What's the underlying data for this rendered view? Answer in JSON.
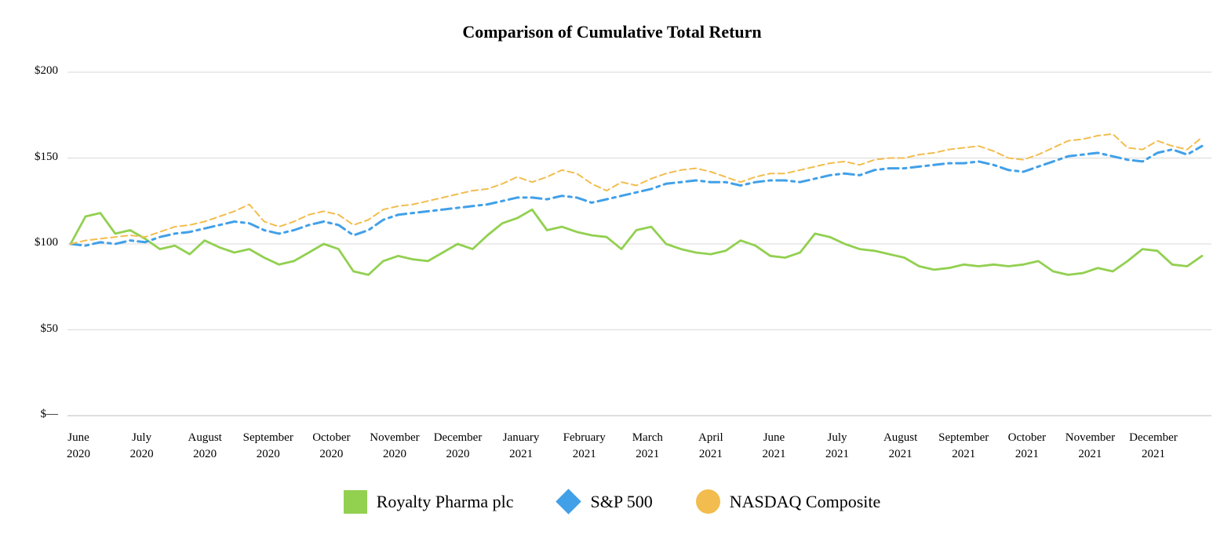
{
  "chart_data": {
    "type": "line",
    "title": "Comparison of Cumulative Total Return",
    "xlabel": "",
    "ylabel": "",
    "ylim": [
      0,
      200
    ],
    "grid": "horizontal",
    "legend_position": "bottom-center",
    "yticks": [
      {
        "value": 0,
        "label": "$—"
      },
      {
        "value": 50,
        "label": "$50"
      },
      {
        "value": 100,
        "label": "$100"
      },
      {
        "value": 150,
        "label": "$150"
      },
      {
        "value": 200,
        "label": "$200"
      }
    ],
    "x_labels": [
      {
        "month": "June",
        "year": "2020"
      },
      {
        "month": "July",
        "year": "2020"
      },
      {
        "month": "August",
        "year": "2020"
      },
      {
        "month": "September",
        "year": "2020"
      },
      {
        "month": "October",
        "year": "2020"
      },
      {
        "month": "November",
        "year": "2020"
      },
      {
        "month": "December",
        "year": "2020"
      },
      {
        "month": "January",
        "year": "2021"
      },
      {
        "month": "February",
        "year": "2021"
      },
      {
        "month": "March",
        "year": "2021"
      },
      {
        "month": "April",
        "year": "2021"
      },
      {
        "month": "June",
        "year": "2021"
      },
      {
        "month": "July",
        "year": "2021"
      },
      {
        "month": "August",
        "year": "2021"
      },
      {
        "month": "September",
        "year": "2021"
      },
      {
        "month": "October",
        "year": "2021"
      },
      {
        "month": "November",
        "year": "2021"
      },
      {
        "month": "December",
        "year": "2021"
      }
    ],
    "series": [
      {
        "id": "royalty-pharma-plc",
        "name": "Royalty Pharma plc",
        "color": "#92d050",
        "marker": "square",
        "line_style": "solid",
        "width": 2.8,
        "dash": "",
        "values": [
          100,
          116,
          118,
          106,
          108,
          103,
          97,
          99,
          94,
          102,
          98,
          95,
          97,
          92,
          88,
          90,
          95,
          100,
          97,
          84,
          82,
          90,
          93,
          91,
          90,
          95,
          100,
          97,
          105,
          112,
          115,
          120,
          108,
          110,
          107,
          105,
          104,
          97,
          108,
          110,
          100,
          97,
          95,
          94,
          96,
          102,
          99,
          93,
          92,
          95,
          106,
          104,
          100,
          97,
          96,
          94,
          92,
          87,
          85,
          86,
          88,
          87,
          88,
          87,
          88,
          90,
          84,
          82,
          83,
          86,
          84,
          90,
          97,
          96,
          88,
          87,
          93
        ]
      },
      {
        "id": "sp-500",
        "name": "S&P 500",
        "color": "#41a0e8",
        "marker": "diamond",
        "line_style": "dashdot",
        "width": 3,
        "dash": "13 6 4 6",
        "values": [
          100,
          99,
          101,
          100,
          102,
          101,
          104,
          106,
          107,
          109,
          111,
          113,
          112,
          108,
          106,
          108,
          111,
          113,
          111,
          105,
          108,
          114,
          117,
          118,
          119,
          120,
          121,
          122,
          123,
          125,
          127,
          127,
          126,
          128,
          127,
          124,
          126,
          128,
          130,
          132,
          135,
          136,
          137,
          136,
          136,
          134,
          136,
          137,
          137,
          136,
          138,
          140,
          141,
          140,
          143,
          144,
          144,
          145,
          146,
          147,
          147,
          148,
          146,
          143,
          142,
          145,
          148,
          151,
          152,
          153,
          151,
          149,
          148,
          153,
          155,
          152,
          157
        ]
      },
      {
        "id": "nasdaq-composite",
        "name": "NASDAQ Composite",
        "color": "#f2bd4e",
        "marker": "circle",
        "line_style": "dashed",
        "width": 2,
        "dash": "8 5",
        "values": [
          100,
          102,
          103,
          104,
          105,
          104,
          107,
          110,
          111,
          113,
          116,
          119,
          123,
          113,
          110,
          113,
          117,
          119,
          117,
          111,
          114,
          120,
          122,
          123,
          125,
          127,
          129,
          131,
          132,
          135,
          139,
          136,
          139,
          143,
          141,
          135,
          131,
          136,
          134,
          138,
          141,
          143,
          144,
          142,
          139,
          136,
          139,
          141,
          141,
          143,
          145,
          147,
          148,
          146,
          149,
          150,
          150,
          152,
          153,
          155,
          156,
          157,
          154,
          150,
          149,
          152,
          156,
          160,
          161,
          163,
          164,
          156,
          155,
          160,
          157,
          155,
          162
        ]
      }
    ]
  }
}
